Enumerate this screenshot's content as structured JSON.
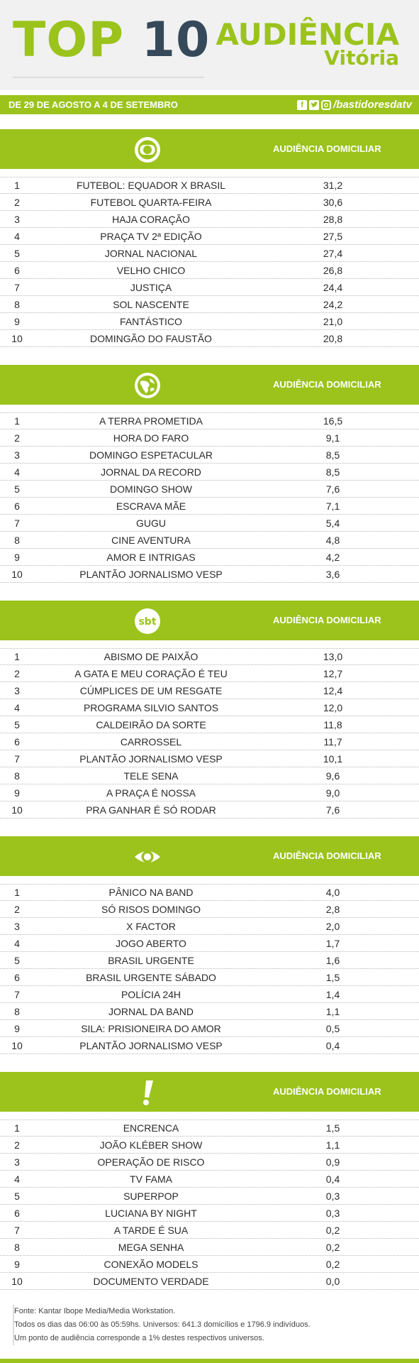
{
  "header": {
    "top": "TOP",
    "ten": "10",
    "audiencia": "AUDIÊNCIA",
    "city": "Vitória"
  },
  "datebar": {
    "date": "DE 29 DE AGOSTO A 4 DE SETEMBRO",
    "handle": "/bastidoresdatv",
    "icons": [
      "facebook-icon",
      "twitter-icon",
      "instagram-icon"
    ]
  },
  "colors": {
    "accent": "#9bc31c",
    "dark": "#35495b"
  },
  "sections": [
    {
      "logo": "globo-logo",
      "label": "AUDIÊNCIA DOMICILIAR",
      "rows": [
        {
          "rank": "1",
          "program": "FUTEBOL: EQUADOR X BRASIL",
          "value": "31,2"
        },
        {
          "rank": "2",
          "program": "FUTEBOL QUARTA-FEIRA",
          "value": "30,6"
        },
        {
          "rank": "3",
          "program": "HAJA CORAÇÃO",
          "value": "28,8"
        },
        {
          "rank": "4",
          "program": "PRAÇA TV 2ª EDIÇÃO",
          "value": "27,5"
        },
        {
          "rank": "5",
          "program": "JORNAL NACIONAL",
          "value": "27,4"
        },
        {
          "rank": "6",
          "program": "VELHO CHICO",
          "value": "26,8"
        },
        {
          "rank": "7",
          "program": "JUSTIÇA",
          "value": "24,4"
        },
        {
          "rank": "8",
          "program": "SOL NASCENTE",
          "value": "24,2"
        },
        {
          "rank": "9",
          "program": "FANTÁSTICO",
          "value": "21,0"
        },
        {
          "rank": "10",
          "program": "DOMINGÃO DO FAUSTÃO",
          "value": "20,8"
        }
      ]
    },
    {
      "logo": "record-logo",
      "label": "AUDIÊNCIA DOMICILIAR",
      "rows": [
        {
          "rank": "1",
          "program": "A TERRA PROMETIDA",
          "value": "16,5"
        },
        {
          "rank": "2",
          "program": "HORA DO FARO",
          "value": "9,1"
        },
        {
          "rank": "3",
          "program": "DOMINGO ESPETACULAR",
          "value": "8,5"
        },
        {
          "rank": "4",
          "program": "JORNAL DA RECORD",
          "value": "8,5"
        },
        {
          "rank": "5",
          "program": "DOMINGO SHOW",
          "value": "7,6"
        },
        {
          "rank": "6",
          "program": "ESCRAVA MÃE",
          "value": "7,1"
        },
        {
          "rank": "7",
          "program": "GUGU",
          "value": "5,4"
        },
        {
          "rank": "8",
          "program": "CINE AVENTURA",
          "value": "4,8"
        },
        {
          "rank": "9",
          "program": "AMOR E INTRIGAS",
          "value": "4,2"
        },
        {
          "rank": "10",
          "program": "PLANTÃO JORNALISMO VESP",
          "value": "3,6"
        }
      ]
    },
    {
      "logo": "sbt-logo",
      "logo_text": "sbt",
      "label": "AUDIÊNCIA DOMICILIAR",
      "rows": [
        {
          "rank": "1",
          "program": "ABISMO DE PAIXÃO",
          "value": "13,0"
        },
        {
          "rank": "2",
          "program": "A GATA E MEU CORAÇÃO É TEU",
          "value": "12,7"
        },
        {
          "rank": "3",
          "program": "CÚMPLICES DE UM RESGATE",
          "value": "12,4"
        },
        {
          "rank": "4",
          "program": "PROGRAMA SILVIO SANTOS",
          "value": "12,0"
        },
        {
          "rank": "5",
          "program": "CALDEIRÃO DA SORTE",
          "value": "11,8"
        },
        {
          "rank": "6",
          "program": "CARROSSEL",
          "value": "11,7"
        },
        {
          "rank": "7",
          "program": "PLANTÃO JORNALISMO VESP",
          "value": "10,1"
        },
        {
          "rank": "8",
          "program": "TELE SENA",
          "value": "9,6"
        },
        {
          "rank": "9",
          "program": "A PRAÇA É NOSSA",
          "value": "9,0"
        },
        {
          "rank": "10",
          "program": "PRA GANHAR É SÓ RODAR",
          "value": "7,6"
        }
      ]
    },
    {
      "logo": "band-logo",
      "label": "AUDIÊNCIA DOMICILIAR",
      "rows": [
        {
          "rank": "1",
          "program": "PÂNICO NA BAND",
          "value": "4,0"
        },
        {
          "rank": "2",
          "program": "SÓ RISOS DOMINGO",
          "value": "2,8"
        },
        {
          "rank": "3",
          "program": "X FACTOR",
          "value": "2,0"
        },
        {
          "rank": "4",
          "program": "JOGO ABERTO",
          "value": "1,7"
        },
        {
          "rank": "5",
          "program": "BRASIL URGENTE",
          "value": "1,6"
        },
        {
          "rank": "6",
          "program": "BRASIL URGENTE SÁBADO",
          "value": "1,5"
        },
        {
          "rank": "7",
          "program": "POLÍCIA 24H",
          "value": "1,4"
        },
        {
          "rank": "8",
          "program": "JORNAL DA BAND",
          "value": "1,1"
        },
        {
          "rank": "9",
          "program": "SILA: PRISIONEIRA DO AMOR",
          "value": "0,5"
        },
        {
          "rank": "10",
          "program": "PLANTÃO JORNALISMO VESP",
          "value": "0,4"
        }
      ]
    },
    {
      "logo": "redetv-logo",
      "label": "AUDIÊNCIA DOMICILIAR",
      "rows": [
        {
          "rank": "1",
          "program": "ENCRENCA",
          "value": "1,5"
        },
        {
          "rank": "2",
          "program": "JOÃO KLÉBER SHOW",
          "value": "1,1"
        },
        {
          "rank": "3",
          "program": "OPERAÇÃO DE RISCO",
          "value": "0,9"
        },
        {
          "rank": "4",
          "program": "TV FAMA",
          "value": "0,4"
        },
        {
          "rank": "5",
          "program": "SUPERPOP",
          "value": "0,3"
        },
        {
          "rank": "6",
          "program": "LUCIANA BY NIGHT",
          "value": "0,3"
        },
        {
          "rank": "7",
          "program": "A TARDE É SUA",
          "value": "0,2"
        },
        {
          "rank": "8",
          "program": "MEGA SENHA",
          "value": "0,2"
        },
        {
          "rank": "9",
          "program": "CONEXÃO MODELS",
          "value": "0,2"
        },
        {
          "rank": "10",
          "program": "DOCUMENTO VERDADE",
          "value": "0,0"
        }
      ]
    }
  ],
  "footer": {
    "line1": "Fonte: Kantar Ibope Media/Media Workstation.",
    "line2": "Todos os dias das 06:00 às 05:59hs. Universos: 641.3 domicílios e 1796.9 indivíduos.",
    "line3": "Um ponto de audiência corresponde a 1% destes respectivos universos."
  }
}
